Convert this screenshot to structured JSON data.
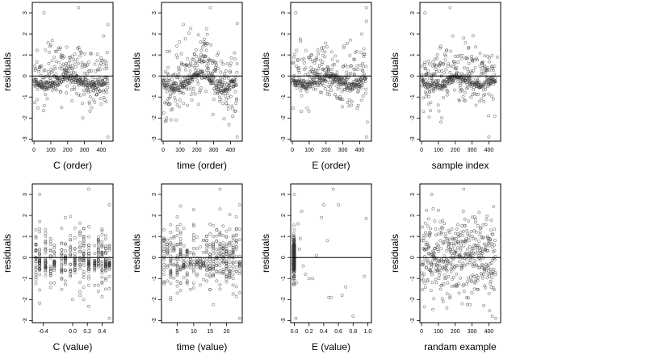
{
  "chart_data": [
    {
      "type": "scatter",
      "xlabel": "C (order)",
      "ylabel": "residuals",
      "xlim": [
        -10,
        470
      ],
      "ylim": [
        -3.1,
        3.5
      ],
      "xticks": [
        0,
        100,
        200,
        300,
        400
      ],
      "xticklabels": [
        "0",
        "100",
        "200",
        "300",
        "400"
      ],
      "yticks": [
        -3,
        -2,
        -1,
        0,
        1,
        2,
        3
      ],
      "yticklabels": [
        "-3",
        "-2",
        "-1",
        "0",
        "1",
        "2",
        "3"
      ],
      "hline": 0,
      "pattern": {
        "kind": "order",
        "n": 440,
        "seed": 11,
        "sd": 0.75,
        "cluster_frac": 0.45,
        "wave_amp": 0.25,
        "outliers": [
          [
            60,
            3.0
          ],
          [
            265,
            3.25
          ],
          [
            440,
            2.45
          ],
          [
            440,
            -2.9
          ],
          [
            290,
            -2.0
          ]
        ]
      }
    },
    {
      "type": "scatter",
      "xlabel": "time (order)",
      "ylabel": "residuals",
      "xlim": [
        -10,
        470
      ],
      "ylim": [
        -3.1,
        3.5
      ],
      "xticks": [
        0,
        100,
        200,
        300,
        400
      ],
      "xticklabels": [
        "0",
        "100",
        "200",
        "300",
        "400"
      ],
      "yticks": [
        -3,
        -2,
        -1,
        0,
        1,
        2,
        3
      ],
      "yticklabels": [
        "-3",
        "-2",
        "-1",
        "0",
        "1",
        "2",
        "3"
      ],
      "hline": 0,
      "pattern": {
        "kind": "order",
        "n": 440,
        "seed": 23,
        "sd": 0.75,
        "cluster_frac": 0.4,
        "wave_amp": 0.55,
        "outliers": [
          [
            280,
            3.25
          ],
          [
            440,
            2.5
          ],
          [
            20,
            -2.0
          ],
          [
            440,
            -2.9
          ],
          [
            120,
            2.45
          ]
        ]
      }
    },
    {
      "type": "scatter",
      "xlabel": "E (order)",
      "ylabel": "residuals",
      "xlim": [
        -10,
        470
      ],
      "ylim": [
        -3.1,
        3.5
      ],
      "xticks": [
        0,
        100,
        200,
        300,
        400
      ],
      "xticklabels": [
        "0",
        "100",
        "200",
        "300",
        "400"
      ],
      "yticks": [
        -3,
        -2,
        -1,
        0,
        1,
        2,
        3
      ],
      "yticklabels": [
        "-3",
        "-2",
        "-1",
        "0",
        "1",
        "2",
        "3"
      ],
      "hline": 0,
      "pattern": {
        "kind": "order",
        "n": 440,
        "seed": 37,
        "sd": 0.72,
        "cluster_frac": 0.5,
        "wave_amp": 0.1,
        "outliers": [
          [
            20,
            3.0
          ],
          [
            440,
            3.25
          ],
          [
            440,
            2.6
          ],
          [
            440,
            -2.9
          ],
          [
            445,
            -2.2
          ]
        ]
      }
    },
    {
      "type": "scatter",
      "xlabel": "sample index",
      "ylabel": "residuals",
      "xlim": [
        -10,
        470
      ],
      "ylim": [
        -3.1,
        3.5
      ],
      "xticks": [
        0,
        100,
        200,
        300,
        400
      ],
      "xticklabels": [
        "0",
        "100",
        "200",
        "300",
        "400"
      ],
      "yticks": [
        -3,
        -2,
        -1,
        0,
        1,
        2,
        3
      ],
      "yticklabels": [
        "-3",
        "-2",
        "-1",
        "0",
        "1",
        "2",
        "3"
      ],
      "hline": 0,
      "pattern": {
        "kind": "order",
        "n": 440,
        "seed": 53,
        "sd": 0.72,
        "cluster_frac": 0.45,
        "wave_amp": 0.15,
        "outliers": [
          [
            20,
            3.0
          ],
          [
            170,
            3.25
          ],
          [
            120,
            -2.0
          ],
          [
            400,
            -2.9
          ],
          [
            450,
            0.9
          ]
        ]
      }
    },
    {
      "type": "scatter",
      "xlabel": "C (value)",
      "ylabel": "residuals",
      "xlim": [
        -0.55,
        0.55
      ],
      "ylim": [
        -3.1,
        3.5
      ],
      "xticks": [
        -0.4,
        0,
        0.2,
        0.4
      ],
      "xticklabels": [
        "-0.4",
        "0.0",
        "0.2",
        "0.4"
      ],
      "yticks": [
        -3,
        -2,
        -1,
        0,
        1,
        2,
        3
      ],
      "yticklabels": [
        "-3",
        "-2",
        "-1",
        "0",
        "1",
        "2",
        "3"
      ],
      "hline": 0,
      "pattern": {
        "kind": "columns",
        "n": 440,
        "seed": 71,
        "sd": 0.75,
        "cols": [
          -0.5,
          -0.45,
          -0.37,
          -0.3,
          -0.25,
          -0.15,
          -0.1,
          -0.03,
          0.03,
          0.1,
          0.15,
          0.22,
          0.3,
          0.35,
          0.4,
          0.45,
          0.5
        ],
        "cluster_cols": [
          -0.45,
          -0.37,
          -0.25,
          0.03,
          0.22,
          0.3,
          0.45,
          0.5
        ],
        "outliers": [
          [
            -0.45,
            3.0
          ],
          [
            0.22,
            3.25
          ],
          [
            0.5,
            2.5
          ],
          [
            0.5,
            -2.9
          ],
          [
            0.0,
            -2.0
          ]
        ]
      }
    },
    {
      "type": "scatter",
      "xlabel": "time (value)",
      "ylabel": "residuals",
      "xlim": [
        0.2,
        24.8
      ],
      "ylim": [
        -3.1,
        3.5
      ],
      "xticks": [
        5,
        10,
        15,
        20
      ],
      "xticklabels": [
        "5",
        "10",
        "15",
        "20"
      ],
      "yticks": [
        -3,
        -2,
        -1,
        0,
        1,
        2,
        3
      ],
      "yticklabels": [
        "-3",
        "-2",
        "-1",
        "0",
        "1",
        "2",
        "3"
      ],
      "hline": 0,
      "pattern": {
        "kind": "columns",
        "n": 440,
        "seed": 89,
        "sd": 0.75,
        "cols": [
          1,
          2,
          3,
          4,
          5,
          6,
          7,
          8,
          9,
          10,
          11,
          12,
          13,
          14,
          15,
          16,
          17,
          18,
          19,
          20,
          21,
          22,
          23,
          24
        ],
        "cluster_cols": [
          7,
          9,
          11,
          12,
          13,
          24
        ],
        "outliers": [
          [
            18,
            3.25
          ],
          [
            24,
            2.5
          ],
          [
            3,
            -2.0
          ],
          [
            24,
            -2.9
          ],
          [
            6,
            2.45
          ]
        ]
      }
    },
    {
      "type": "scatter",
      "xlabel": "E (value)",
      "ylabel": "residuals",
      "xlim": [
        -0.05,
        1.05
      ],
      "ylim": [
        -3.1,
        3.5
      ],
      "xticks": [
        0,
        0.2,
        0.4,
        0.6,
        0.8,
        1.0
      ],
      "xticklabels": [
        "0.0",
        "0.2",
        "0.4",
        "0.6",
        "0.8",
        "1.0"
      ],
      "yticks": [
        -3,
        -2,
        -1,
        0,
        1,
        2,
        3
      ],
      "yticklabels": [
        "-3",
        "-2",
        "-1",
        "0",
        "1",
        "2",
        "3"
      ],
      "hline": 0,
      "pattern": {
        "kind": "stack",
        "n": 400,
        "seed": 97,
        "sd": 0.55,
        "x0": -0.005,
        "spread": 0.012,
        "extras": [
          [
            0.0,
            3.0
          ],
          [
            0.05,
            1.6
          ],
          [
            0.08,
            0.9
          ],
          [
            0.12,
            -0.4
          ],
          [
            0.2,
            -1.0
          ],
          [
            0.25,
            -1.0
          ],
          [
            0.3,
            0.1
          ],
          [
            0.37,
            1.9
          ],
          [
            0.4,
            2.5
          ],
          [
            0.45,
            0.8
          ],
          [
            0.47,
            -1.9
          ],
          [
            0.5,
            -1.9
          ],
          [
            0.53,
            3.25
          ],
          [
            0.6,
            2.5
          ],
          [
            0.65,
            -1.8
          ],
          [
            0.7,
            -1.4
          ],
          [
            0.8,
            -2.8
          ],
          [
            0.02,
            -2.9
          ],
          [
            0.95,
            -0.9
          ],
          [
            0.98,
            1.85
          ],
          [
            0.03,
            -1.2
          ],
          [
            0.07,
            0.4
          ],
          [
            0.15,
            -0.8
          ],
          [
            0.1,
            2.2
          ]
        ]
      }
    },
    {
      "type": "scatter",
      "xlabel": "randam example",
      "ylabel": "residuals",
      "xlim": [
        -10,
        470
      ],
      "ylim": [
        -3.1,
        3.5
      ],
      "xticks": [
        0,
        100,
        200,
        300,
        400
      ],
      "xticklabels": [
        "0",
        "100",
        "200",
        "300",
        "400"
      ],
      "yticks": [
        -3,
        -2,
        -1,
        0,
        1,
        2,
        3
      ],
      "yticklabels": [
        "-3",
        "-2",
        "-1",
        "0",
        "1",
        "2",
        "3"
      ],
      "hline": 0,
      "pattern": {
        "kind": "random",
        "n": 440,
        "seed": 131,
        "sd": 0.95,
        "outliers": [
          [
            60,
            3.0
          ],
          [
            250,
            3.25
          ],
          [
            440,
            -2.9
          ],
          [
            420,
            -2.8
          ],
          [
            150,
            -2.4
          ]
        ]
      }
    }
  ]
}
